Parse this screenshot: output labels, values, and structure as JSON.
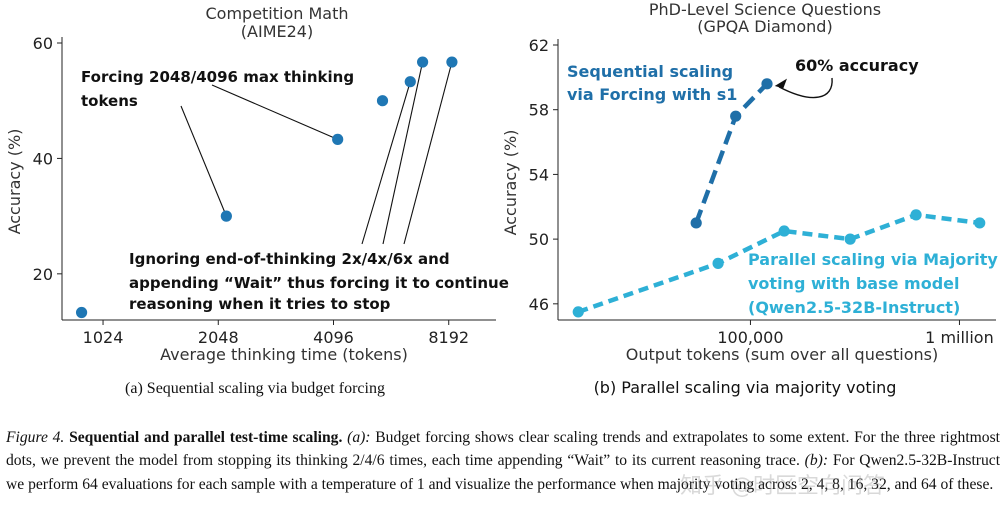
{
  "chart_data": [
    {
      "id": "a",
      "type": "scatter",
      "title": "Competition Math",
      "subtitle": "(AIME24)",
      "xlabel": "Average thinking time (tokens)",
      "ylabel": "Accuracy (%)",
      "x_scale": "log",
      "xlim": [
        800,
        10500
      ],
      "ylim": [
        12,
        60
      ],
      "xticks": [
        1024,
        2048,
        4096,
        8192
      ],
      "xtick_labels": [
        "1024",
        "2048",
        "4096",
        "8192"
      ],
      "yticks": [
        20,
        40,
        60
      ],
      "ytick_labels": [
        "20",
        "40",
        "60"
      ],
      "color": "#1f77b4",
      "points": [
        {
          "x": 900,
          "y": 13.3
        },
        {
          "x": 2150,
          "y": 30.0
        },
        {
          "x": 4200,
          "y": 43.3
        },
        {
          "x": 5500,
          "y": 50.0
        },
        {
          "x": 6500,
          "y": 53.3
        },
        {
          "x": 7000,
          "y": 56.7
        },
        {
          "x": 8350,
          "y": 56.7
        }
      ],
      "annotations": [
        {
          "text_lines": [
            "Forcing 2048/4096 max thinking",
            "tokens"
          ],
          "targets": [
            1,
            2
          ]
        },
        {
          "text_lines": [
            "Ignoring end-of-thinking 2x/4x/6x and",
            "appending “Wait” thus forcing it to continue",
            "reasoning when it tries to stop"
          ],
          "targets": [
            4,
            5,
            6
          ]
        }
      ],
      "caption": "(a)  Sequential scaling via budget forcing"
    },
    {
      "id": "b",
      "type": "line",
      "title": "PhD-Level Science Questions",
      "subtitle": "(GPQA Diamond)",
      "xlabel": "Output tokens (sum over all questions)",
      "ylabel": "Accuracy (%)",
      "x_scale": "log",
      "xlim": [
        12000,
        1400000
      ],
      "ylim": [
        45,
        62
      ],
      "xticks": [
        100000,
        1000000
      ],
      "xtick_labels": [
        "100,000",
        "1 million"
      ],
      "yticks": [
        46,
        50,
        54,
        58,
        62
      ],
      "ytick_labels": [
        "46",
        "50",
        "54",
        "58",
        "62"
      ],
      "series": [
        {
          "name": "Sequential scaling via Forcing with s1",
          "label_lines": [
            "Sequential scaling",
            "via Forcing with s1"
          ],
          "color": "#1f6fa8",
          "x": [
            55000,
            85000,
            120000
          ],
          "y": [
            51.0,
            57.6,
            59.6
          ]
        },
        {
          "name": "Parallel scaling via Majority voting with base model (Qwen2.5-32B-Instruct)",
          "label_lines": [
            "Parallel scaling via Majority",
            "voting with base model",
            "(Qwen2.5-32B-Instruct)"
          ],
          "color": "#2eb0d6",
          "x": [
            15000,
            70000,
            145000,
            300000,
            620000,
            1250000
          ],
          "y": [
            45.5,
            48.5,
            50.5,
            50.0,
            51.5,
            51.0
          ]
        }
      ],
      "annotations": [
        {
          "text": "60% accuracy"
        }
      ],
      "caption": "(b)  Parallel scaling via majority voting"
    }
  ],
  "caption": {
    "figure_label": "Figure 4.",
    "title": "Sequential and parallel test-time scaling.",
    "a_label": "(a):",
    "a_text": "Budget forcing shows clear scaling trends and extrapolates to some extent. For the three rightmost dots, we prevent the model from stopping its thinking 2/4/6 times, each time appending “Wait” to its current reasoning trace.",
    "b_label": "(b):",
    "b_text": "For Qwen2.5-32B-Instruct we perform 64 evaluations for each sample with a temperature of 1 and visualize the performance when majority voting across 2, 4, 8, 16, 32, and 64 of these."
  },
  "watermark": "知乎 @时区空向问答"
}
